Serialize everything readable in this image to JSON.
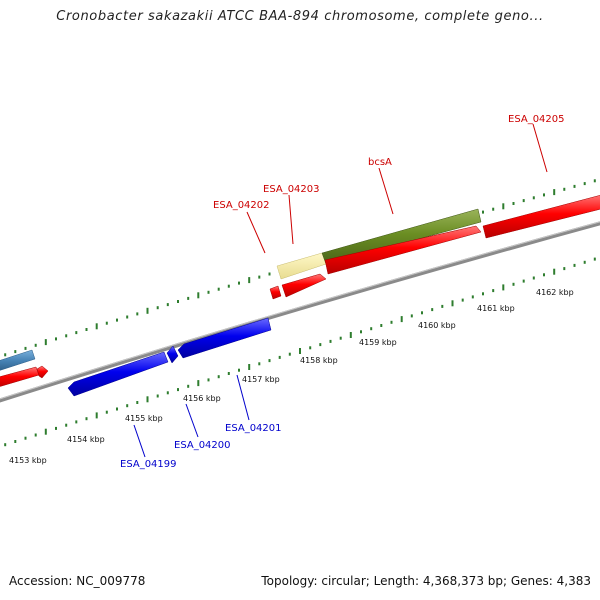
{
  "title": "Cronobacter sakazakii ATCC BAA-894 chromosome, complete geno...",
  "footer": {
    "accession": "Accession: NC_009778",
    "topology": "Topology: circular; Length: 4,368,373 bp; Genes: 4,383"
  },
  "colors": {
    "forward_gene": "#ff0000",
    "reverse_gene": "#0000ff",
    "forward_label": "#cc0000",
    "reverse_label": "#0000cc",
    "operon": "#6b8e23",
    "highlight": "#f2e8a0",
    "light_blue_gene": "#4682b4",
    "backbone": "#888888",
    "ticks": "#2e7d2e"
  },
  "ticks": [
    {
      "label": "4153 kbp"
    },
    {
      "label": "4154 kbp"
    },
    {
      "label": "4155 kbp"
    },
    {
      "label": "4156 kbp"
    },
    {
      "label": "4157 kbp"
    },
    {
      "label": "4158 kbp"
    },
    {
      "label": "4159 kbp"
    },
    {
      "label": "4160 kbp"
    },
    {
      "label": "4161 kbp"
    },
    {
      "label": "4162 kbp"
    }
  ],
  "gene_labels": [
    {
      "text": "ESA_04205",
      "strand": "forward"
    },
    {
      "text": "bcsA",
      "strand": "forward"
    },
    {
      "text": "ESA_04203",
      "strand": "forward"
    },
    {
      "text": "ESA_04202",
      "strand": "forward"
    },
    {
      "text": "ESA_04201",
      "strand": "reverse"
    },
    {
      "text": "ESA_04200",
      "strand": "reverse"
    },
    {
      "text": "ESA_04199",
      "strand": "reverse"
    }
  ]
}
